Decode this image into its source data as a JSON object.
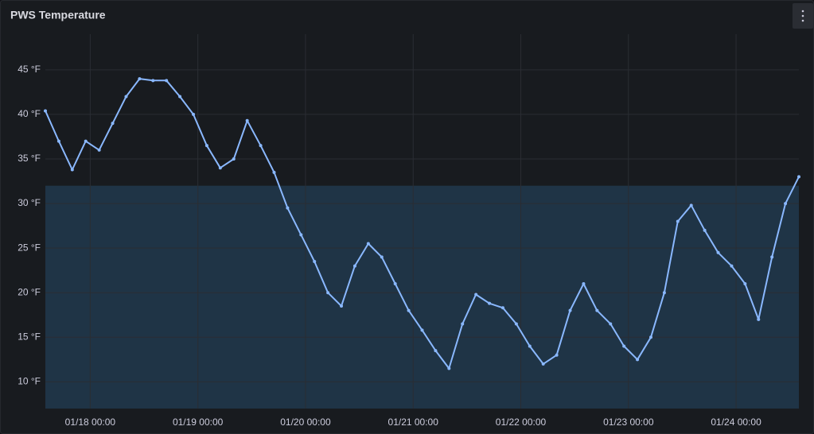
{
  "chart_data": {
    "type": "line",
    "title": "PWS Temperature",
    "x": [
      "01/17 14:00",
      "01/17 17:00",
      "01/17 20:00",
      "01/17 23:00",
      "01/18 02:00",
      "01/18 05:00",
      "01/18 08:00",
      "01/18 11:00",
      "01/18 14:00",
      "01/18 17:00",
      "01/18 20:00",
      "01/18 23:00",
      "01/19 02:00",
      "01/19 05:00",
      "01/19 08:00",
      "01/19 11:00",
      "01/19 14:00",
      "01/19 17:00",
      "01/19 20:00",
      "01/19 23:00",
      "01/20 02:00",
      "01/20 05:00",
      "01/20 08:00",
      "01/20 11:00",
      "01/20 14:00",
      "01/20 17:00",
      "01/20 20:00",
      "01/20 23:00",
      "01/21 02:00",
      "01/21 05:00",
      "01/21 08:00",
      "01/21 11:00",
      "01/21 14:00",
      "01/21 17:00",
      "01/21 20:00",
      "01/21 23:00",
      "01/22 02:00",
      "01/22 05:00",
      "01/22 08:00",
      "01/22 11:00",
      "01/22 14:00",
      "01/22 17:00",
      "01/22 20:00",
      "01/22 23:00",
      "01/23 02:00",
      "01/23 05:00",
      "01/23 08:00",
      "01/23 11:00",
      "01/23 14:00",
      "01/23 17:00",
      "01/23 20:00",
      "01/23 23:00",
      "01/24 02:00",
      "01/24 05:00",
      "01/24 08:00",
      "01/24 11:00",
      "01/24 14:00"
    ],
    "values": [
      40.4,
      37,
      33.8,
      37,
      36,
      39,
      42,
      44,
      43.8,
      43.8,
      42,
      40,
      36.5,
      34,
      35,
      39.3,
      36.5,
      33.5,
      29.5,
      26.5,
      23.5,
      20,
      18.5,
      23,
      25.5,
      24,
      21,
      18,
      15.8,
      13.5,
      11.5,
      16.5,
      19.8,
      18.8,
      18.3,
      16.5,
      14,
      12,
      13,
      18,
      21,
      18,
      16.5,
      14,
      12.5,
      15,
      20,
      28,
      29.8,
      27,
      24.5,
      23,
      21,
      17,
      24,
      30,
      33
    ],
    "color": "#8ab8ff",
    "threshold": 32,
    "threshold_color": "#1f3446",
    "xlim": [
      "01/17 14:00",
      "01/24 14:00"
    ],
    "xticks": [
      "01/18 00:00",
      "01/19 00:00",
      "01/20 00:00",
      "01/21 00:00",
      "01/22 00:00",
      "01/23 00:00",
      "01/24 00:00"
    ],
    "ylim": [
      7,
      49
    ],
    "yticks": [
      {
        "value": 10,
        "label": "10 °F"
      },
      {
        "value": 15,
        "label": "15 °F"
      },
      {
        "value": 20,
        "label": "20 °F"
      },
      {
        "value": 25,
        "label": "25 °F"
      },
      {
        "value": 30,
        "label": "30 °F"
      },
      {
        "value": 35,
        "label": "35 °F"
      },
      {
        "value": 40,
        "label": "40 °F"
      },
      {
        "value": 45,
        "label": "45 °F"
      }
    ],
    "grid": true
  }
}
